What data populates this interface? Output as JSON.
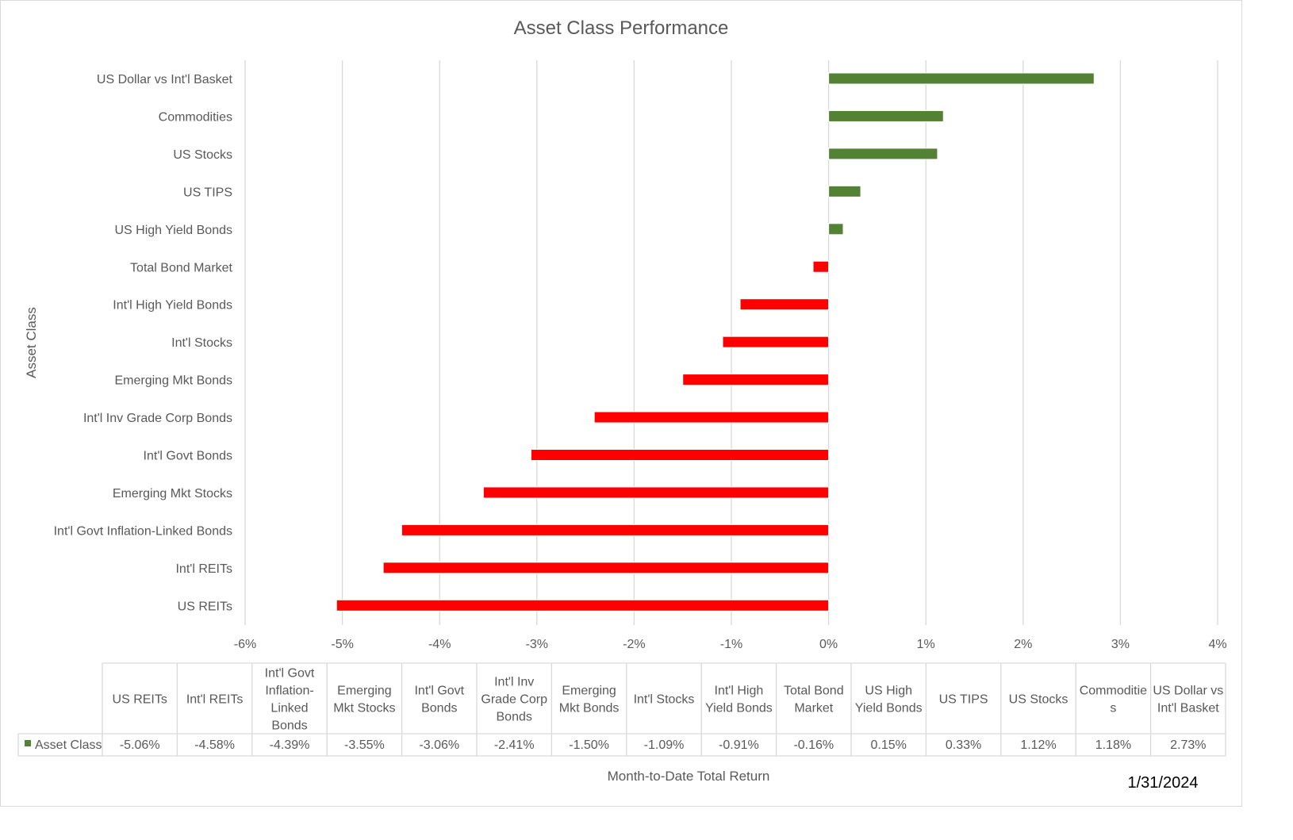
{
  "chart_data": {
    "type": "bar",
    "orientation": "horizontal",
    "title": "Asset Class Performance",
    "xlabel": "Month-to-Date Total Return",
    "ylabel": "Asset Class",
    "xlim": [
      -0.06,
      0.04
    ],
    "x_ticks": [
      "-6%",
      "-5%",
      "-4%",
      "-3%",
      "-2%",
      "-1%",
      "0%",
      "1%",
      "2%",
      "3%",
      "4%"
    ],
    "grid": true,
    "legend": "data-table",
    "series_name": "Asset Class",
    "categories": [
      "US REITs",
      "Int'l REITs",
      "Int'l Govt Inflation-Linked Bonds",
      "Emerging Mkt Stocks",
      "Int'l Govt Bonds",
      "Int'l Inv Grade Corp Bonds",
      "Emerging Mkt Bonds",
      "Int'l Stocks",
      "Int'l High Yield Bonds",
      "Total Bond Market",
      "US High Yield Bonds",
      "US TIPS",
      "US Stocks",
      "Commodities",
      "US Dollar vs Int'l Basket"
    ],
    "table_headers": [
      [
        "US REITs"
      ],
      [
        "Int'l REITs"
      ],
      [
        "Int'l Govt",
        "Inflation-",
        "Linked",
        "Bonds"
      ],
      [
        "Emerging",
        "Mkt Stocks"
      ],
      [
        "Int'l Govt",
        "Bonds"
      ],
      [
        "Int'l Inv",
        "Grade Corp",
        "Bonds"
      ],
      [
        "Emerging",
        "Mkt Bonds"
      ],
      [
        "Int'l Stocks"
      ],
      [
        "Int'l High",
        "Yield Bonds"
      ],
      [
        "Total Bond",
        "Market"
      ],
      [
        "US High",
        "Yield Bonds"
      ],
      [
        "US TIPS"
      ],
      [
        "US Stocks"
      ],
      [
        "Commoditie",
        "s"
      ],
      [
        "US Dollar vs",
        "Int'l Basket"
      ]
    ],
    "values": [
      -0.0506,
      -0.0458,
      -0.0439,
      -0.0355,
      -0.0306,
      -0.0241,
      -0.015,
      -0.0109,
      -0.0091,
      -0.0016,
      0.0015,
      0.0033,
      0.0112,
      0.0118,
      0.0273
    ],
    "value_labels": [
      "-5.06%",
      "-4.58%",
      "-4.39%",
      "-3.55%",
      "-3.06%",
      "-2.41%",
      "-1.50%",
      "-1.09%",
      "-0.91%",
      "-0.16%",
      "0.15%",
      "0.33%",
      "1.12%",
      "1.18%",
      "2.73%"
    ],
    "colors": {
      "positive": "#548235",
      "negative": "#ff0000",
      "grid": "#d9d9d9",
      "text": "#595959"
    }
  },
  "date_stamp": "1/31/2024"
}
